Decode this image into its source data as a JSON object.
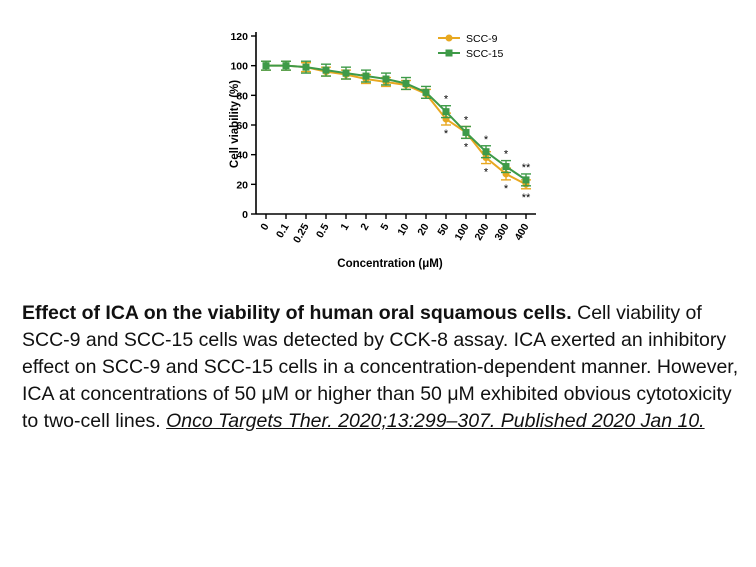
{
  "chart_data": {
    "type": "line",
    "xlabel": "Concentration (μM)",
    "ylabel": "Cell viability (%)",
    "ylim": [
      0,
      120
    ],
    "yticks": [
      0,
      20,
      40,
      60,
      80,
      100,
      120
    ],
    "categories": [
      "0",
      "0.1",
      "0.25",
      "0.5",
      "1",
      "2",
      "5",
      "10",
      "20",
      "50",
      "100",
      "200",
      "300",
      "400"
    ],
    "legend_position": "top-right",
    "series": [
      {
        "name": "SCC-9",
        "color": "#E8A820",
        "marker": "circle",
        "values": [
          100,
          100,
          99,
          96,
          94,
          91,
          89,
          87,
          81,
          64,
          55,
          38,
          27,
          20
        ],
        "errors": [
          3,
          3,
          3,
          3,
          3,
          3,
          3,
          3,
          3,
          4,
          4,
          4,
          4,
          3
        ],
        "significance_below": [
          "",
          "",
          "",
          "",
          "",
          "",
          "",
          "",
          "",
          "*",
          "*",
          "*",
          "*",
          "**"
        ]
      },
      {
        "name": "SCC-15",
        "color": "#3E9A48",
        "marker": "square",
        "values": [
          100,
          100,
          99,
          97,
          95,
          93,
          91,
          88,
          82,
          69,
          55,
          42,
          32,
          23
        ],
        "errors": [
          3,
          3,
          4,
          4,
          4,
          4,
          4,
          4,
          4,
          4,
          4,
          4,
          4,
          4
        ],
        "significance_above": [
          "",
          "",
          "",
          "",
          "",
          "",
          "",
          "",
          "",
          "*",
          "*",
          "*",
          "*",
          "**"
        ]
      }
    ]
  },
  "caption": {
    "title": "Effect of ICA on the viability of human oral squamous cells.",
    "body": " Cell viability of SCC-9 and SCC-15 cells was detected by CCK-8 assay. ICA exerted an inhibitory effect on SCC-9 and SCC-15 cells in a concentration-dependent manner. However, ICA at concentrations of 50 μM or higher than 50 μM exhibited obvious cytotoxicity to two-cell lines. ",
    "citation": "Onco Targets Ther. 2020;13:299–307. Published 2020 Jan 10."
  }
}
